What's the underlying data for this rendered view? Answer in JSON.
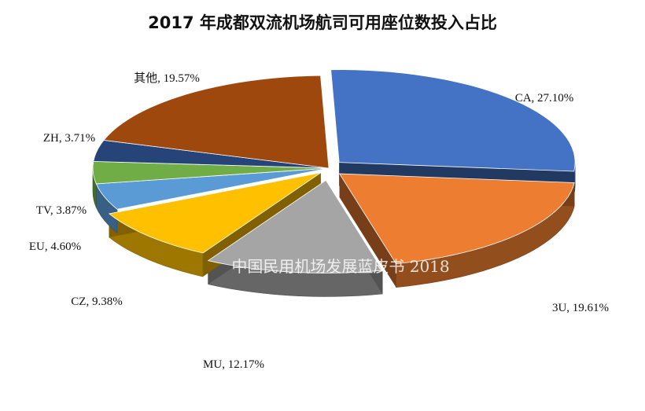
{
  "chart_data": {
    "type": "pie",
    "title": "2017 年成都双流机场航司可用座位数投入占比",
    "watermark": "中国民用机场发展蓝皮书 2018",
    "unit": "%",
    "slices": [
      {
        "label": "CA",
        "value": 27.1,
        "display": "CA, 27.10%",
        "color": "#4472C4"
      },
      {
        "label": "3U",
        "value": 19.61,
        "display": "3U, 19.61%",
        "color": "#ED7D31"
      },
      {
        "label": "MU",
        "value": 12.17,
        "display": "MU, 12.17%",
        "color": "#A5A5A5"
      },
      {
        "label": "CZ",
        "value": 9.38,
        "display": "CZ, 9.38%",
        "color": "#FFC000"
      },
      {
        "label": "EU",
        "value": 4.6,
        "display": "EU, 4.60%",
        "color": "#5B9BD5"
      },
      {
        "label": "TV",
        "value": 3.87,
        "display": "TV, 3.87%",
        "color": "#70AD47"
      },
      {
        "label": "ZH",
        "value": 3.71,
        "display": "ZH, 3.71%",
        "color": "#264478"
      },
      {
        "label": "其他",
        "value": 19.57,
        "display": "其他, 19.57%",
        "color": "#9E480E"
      }
    ]
  }
}
